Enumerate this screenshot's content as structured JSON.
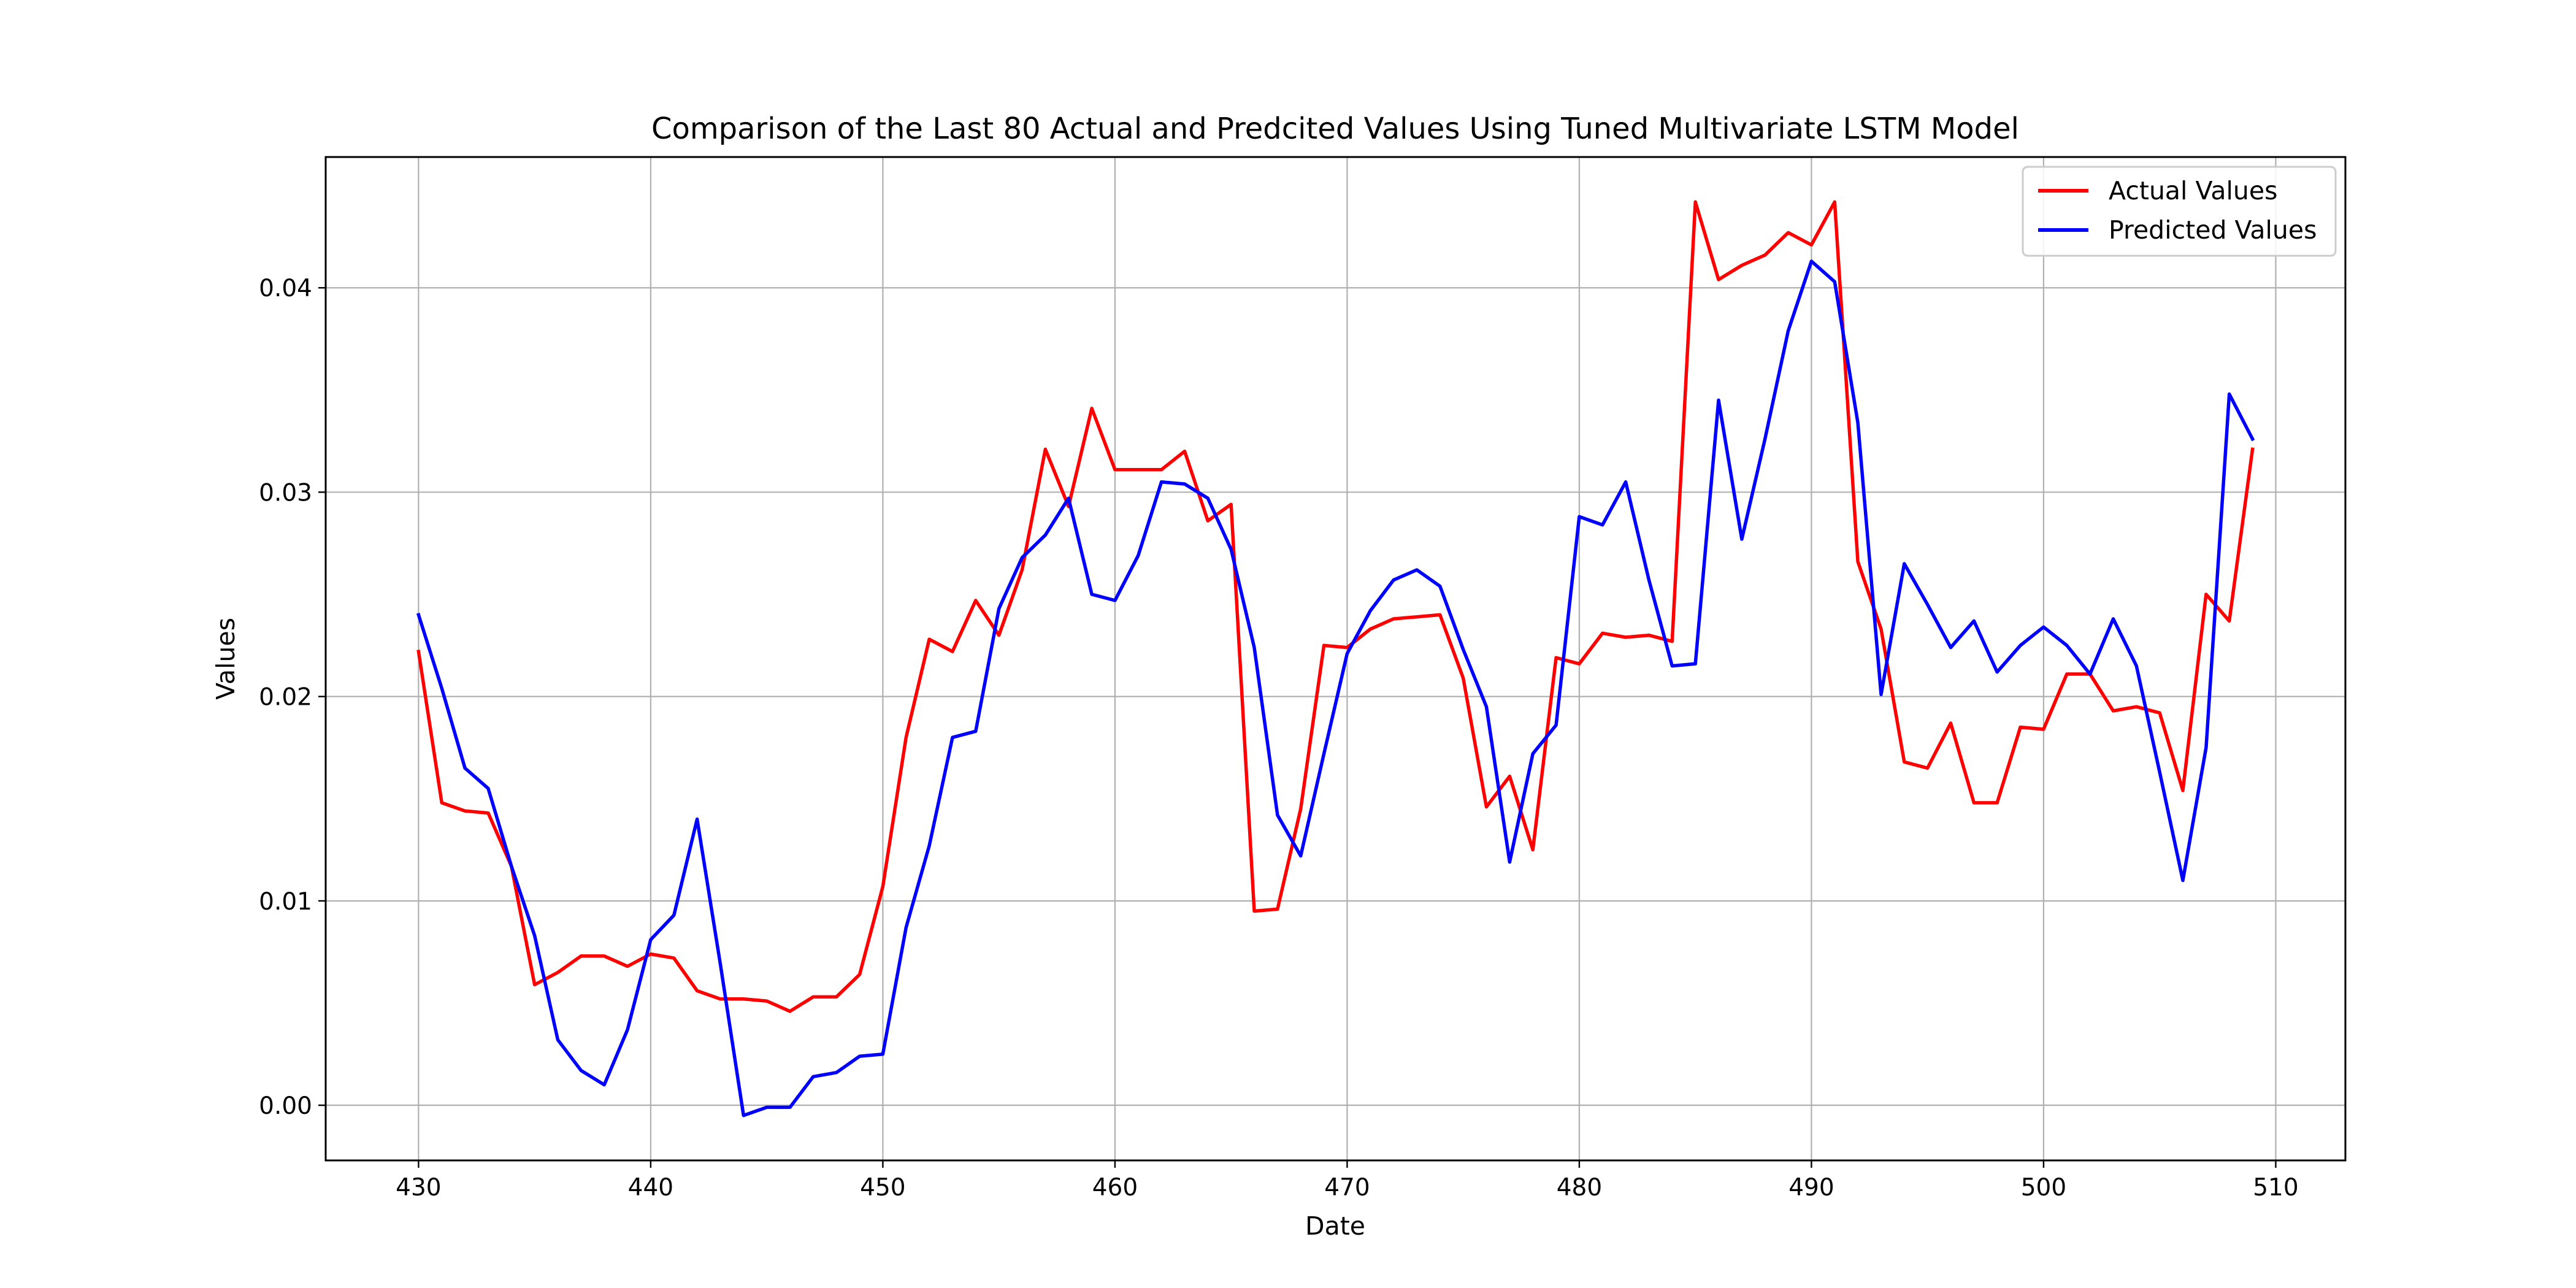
{
  "chart_data": {
    "type": "line",
    "title": "Comparison of the Last 80 Actual and Predcited Values Using Tuned Multivariate LSTM Model",
    "xlabel": "Date",
    "ylabel": "Values",
    "xlim": [
      426,
      513
    ],
    "ylim": [
      -0.0027,
      0.0464
    ],
    "xticks": [
      430,
      440,
      450,
      460,
      470,
      480,
      490,
      500,
      510
    ],
    "yticks": [
      0.0,
      0.01,
      0.02,
      0.03,
      0.04
    ],
    "xtick_labels": [
      "430",
      "440",
      "450",
      "460",
      "470",
      "480",
      "490",
      "500",
      "510"
    ],
    "ytick_labels": [
      "0.00",
      "0.01",
      "0.02",
      "0.03",
      "0.04"
    ],
    "grid": true,
    "legend_position": "top-right",
    "x_start": 430,
    "series": [
      {
        "name": "Actual Values",
        "color": "#ff0000",
        "values": [
          0.0222,
          0.0148,
          0.0144,
          0.0143,
          0.0117,
          0.0059,
          0.0065,
          0.0073,
          0.0073,
          0.0068,
          0.0074,
          0.0072,
          0.0056,
          0.0052,
          0.0052,
          0.0051,
          0.0046,
          0.0053,
          0.0053,
          0.0064,
          0.0107,
          0.018,
          0.0228,
          0.0222,
          0.0247,
          0.023,
          0.0262,
          0.0321,
          0.0293,
          0.0341,
          0.0311,
          0.0311,
          0.0311,
          0.032,
          0.0286,
          0.0294,
          0.0095,
          0.0096,
          0.0145,
          0.0225,
          0.0224,
          0.0233,
          0.0238,
          0.0239,
          0.024,
          0.0209,
          0.0146,
          0.0161,
          0.0125,
          0.0219,
          0.0216,
          0.0231,
          0.0229,
          0.023,
          0.0227,
          0.0442,
          0.0404,
          0.0411,
          0.0416,
          0.0427,
          0.0421,
          0.0442,
          0.0266,
          0.0233,
          0.0168,
          0.0165,
          0.0187,
          0.0148,
          0.0148,
          0.0185,
          0.0184,
          0.0211,
          0.0211,
          0.0193,
          0.0195,
          0.0192,
          0.0154,
          0.025,
          0.0237,
          0.0321
        ]
      },
      {
        "name": "Predicted Values",
        "color": "#0000ff",
        "values": [
          0.024,
          0.0204,
          0.0165,
          0.0155,
          0.0117,
          0.0083,
          0.0032,
          0.0017,
          0.001,
          0.0037,
          0.0081,
          0.0093,
          0.014,
          0.0069,
          -0.0005,
          -0.0001,
          -0.0001,
          0.0014,
          0.0016,
          0.0024,
          0.0025,
          0.0087,
          0.0127,
          0.018,
          0.0183,
          0.0243,
          0.0268,
          0.0279,
          0.0297,
          0.025,
          0.0247,
          0.0269,
          0.0305,
          0.0304,
          0.0297,
          0.0272,
          0.0224,
          0.0142,
          0.0122,
          0.0172,
          0.0221,
          0.0242,
          0.0257,
          0.0262,
          0.0254,
          0.0223,
          0.0195,
          0.0119,
          0.0172,
          0.0186,
          0.0288,
          0.0284,
          0.0305,
          0.0257,
          0.0215,
          0.0216,
          0.0345,
          0.0277,
          0.0326,
          0.0379,
          0.0413,
          0.0403,
          0.0334,
          0.0201,
          0.0265,
          0.0245,
          0.0224,
          0.0237,
          0.0212,
          0.0225,
          0.0234,
          0.0225,
          0.0211,
          0.0238,
          0.0215,
          0.0163,
          0.011,
          0.0175,
          0.0348,
          0.0326
        ]
      }
    ]
  }
}
